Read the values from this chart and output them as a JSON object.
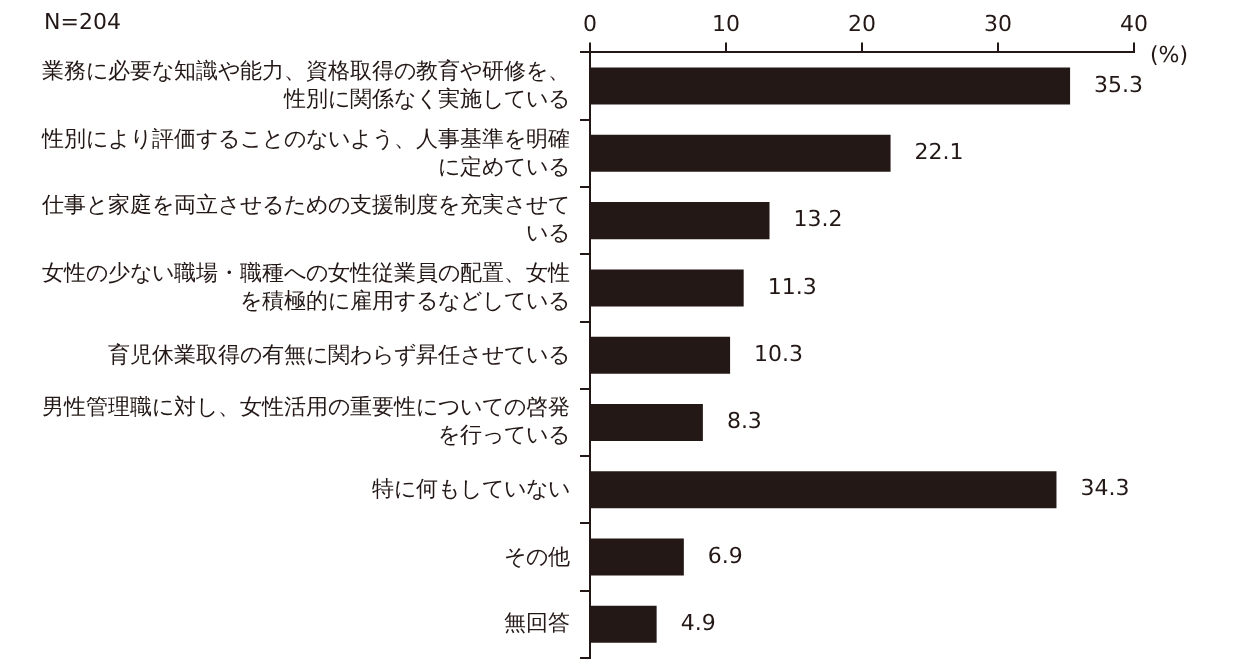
{
  "chart_data": {
    "type": "bar",
    "orientation": "horizontal",
    "xlabel": "(%)",
    "annotations": [
      "N=204"
    ],
    "categories": [
      "業務に必要な知識や能力、資格取得の教育や研修を、性別に関係なく実施している",
      "性別により評価することのないよう、人事基準を明確に定めている",
      "仕事と家庭を両立させるための支援制度を充実させている",
      "女性の少ない職場・職種への女性従業員の配置、女性を積極的に雇用するなどしている",
      "育児休業取得の有無に関わらず昇任させている",
      "男性管理職に対し、女性活用の重要性についての啓発を行っている",
      "特に何もしていない",
      "その他",
      "無回答"
    ],
    "values": [
      35.3,
      22.1,
      13.2,
      11.3,
      10.3,
      8.3,
      34.3,
      6.9,
      4.9
    ],
    "color": "#231815",
    "xlim": [
      0,
      40
    ],
    "xticks": [
      0,
      10,
      20,
      30,
      40
    ],
    "grid": false,
    "legend": false,
    "data_labels": true
  }
}
